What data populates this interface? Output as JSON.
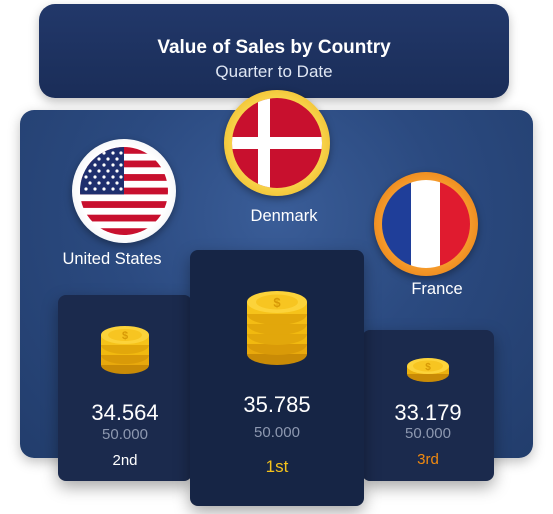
{
  "header": {
    "title": "Value of Sales by Country",
    "subtitle": "Quarter to Date"
  },
  "colors": {
    "gold": "#f4c21b",
    "bronze": "#f28a0f",
    "silver": "#ffffff",
    "navy": "#1b2a4d",
    "panel": "#2b4a80"
  },
  "chart_data": {
    "type": "table",
    "title": "Value of Sales by Country",
    "subtitle": "Quarter to Date",
    "rows": [
      {
        "country": "United States",
        "value": "34.564",
        "target": "50.000",
        "rank": "2nd",
        "flag": "us-flag-icon"
      },
      {
        "country": "Denmark",
        "value": "35.785",
        "target": "50.000",
        "rank": "1st",
        "flag": "denmark-flag-icon"
      },
      {
        "country": "France",
        "value": "33.179",
        "target": "50.000",
        "rank": "3rd",
        "flag": "france-flag-icon"
      }
    ]
  }
}
